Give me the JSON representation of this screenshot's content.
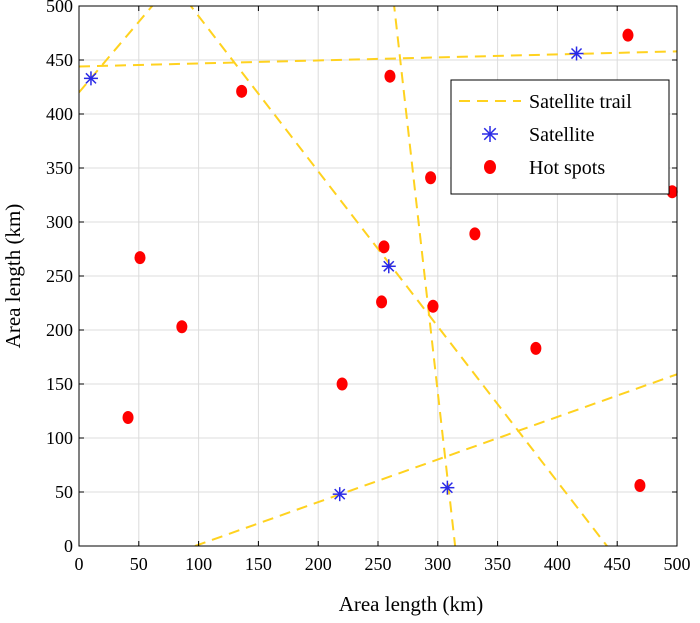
{
  "chart_data": {
    "type": "scatter",
    "title": "",
    "xlabel": "Area length (km)",
    "ylabel": "Area length (km)",
    "xlim": [
      0,
      500
    ],
    "ylim": [
      0,
      500
    ],
    "xticks": [
      0,
      50,
      100,
      150,
      200,
      250,
      300,
      350,
      400,
      450,
      500
    ],
    "yticks": [
      0,
      50,
      100,
      150,
      200,
      250,
      300,
      350,
      400,
      450,
      500
    ],
    "grid": true,
    "legend_position": "top-right",
    "series": [
      {
        "name": "Satellite trail",
        "kind": "dashed-line",
        "color": "#FFD21F",
        "segments": [
          {
            "x": [
              0,
              65
            ],
            "y": [
              420,
              505
            ]
          },
          {
            "x": [
              0,
              500
            ],
            "y": [
              444,
              458
            ]
          },
          {
            "x": [
              90,
              447
            ],
            "y": [
              505,
              -8
            ]
          },
          {
            "x": [
              263,
              315
            ],
            "y": [
              505,
              -5
            ]
          },
          {
            "x": [
              97,
              500
            ],
            "y": [
              0,
              159
            ]
          }
        ]
      },
      {
        "name": "Satellite",
        "kind": "asterisk",
        "color": "#2A2AE6",
        "x": [
          10,
          218,
          259,
          308,
          416
        ],
        "y": [
          433,
          48,
          259,
          54,
          456
        ]
      },
      {
        "name": "Hot spots",
        "kind": "dot",
        "color": "#FF0000",
        "x": [
          41,
          51,
          86,
          136,
          220,
          253,
          255,
          260,
          294,
          296,
          331,
          382,
          459,
          469,
          496
        ],
        "y": [
          119,
          267,
          203,
          421,
          150,
          226,
          277,
          435,
          341,
          222,
          289,
          183,
          473,
          56,
          328
        ]
      }
    ]
  }
}
